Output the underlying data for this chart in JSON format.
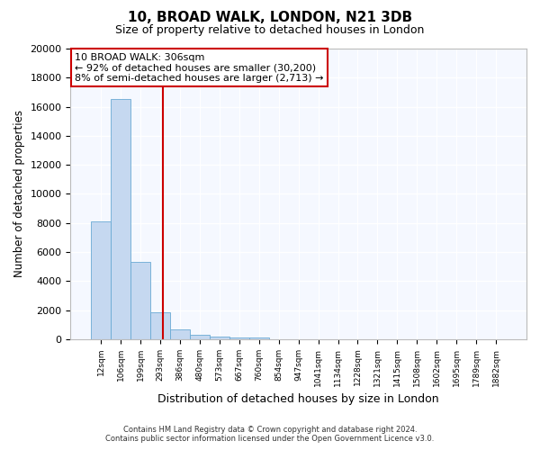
{
  "title": "10, BROAD WALK, LONDON, N21 3DB",
  "subtitle": "Size of property relative to detached houses in London",
  "xlabel": "Distribution of detached houses by size in London",
  "ylabel": "Number of detached properties",
  "categories": [
    "12sqm",
    "106sqm",
    "199sqm",
    "293sqm",
    "386sqm",
    "480sqm",
    "573sqm",
    "667sqm",
    "760sqm",
    "854sqm",
    "947sqm",
    "1041sqm",
    "1134sqm",
    "1228sqm",
    "1321sqm",
    "1415sqm",
    "1508sqm",
    "1602sqm",
    "1695sqm",
    "1789sqm",
    "1882sqm"
  ],
  "values": [
    8100,
    16550,
    5300,
    1850,
    680,
    300,
    150,
    100,
    100,
    0,
    0,
    0,
    0,
    0,
    0,
    0,
    0,
    0,
    0,
    0,
    0
  ],
  "bar_color": "#c5d8f0",
  "bar_edge_color": "#6aaad4",
  "vline_color": "#cc0000",
  "vline_pos": 3.15,
  "annotation_title": "10 BROAD WALK: 306sqm",
  "annotation_line1": "← 92% of detached houses are smaller (30,200)",
  "annotation_line2": "8% of semi-detached houses are larger (2,713) →",
  "annotation_box_color": "#ffffff",
  "annotation_box_edge": "#cc0000",
  "ylim": [
    0,
    20000
  ],
  "yticks": [
    0,
    2000,
    4000,
    6000,
    8000,
    10000,
    12000,
    14000,
    16000,
    18000,
    20000
  ],
  "footer_line1": "Contains HM Land Registry data © Crown copyright and database right 2024.",
  "footer_line2": "Contains public sector information licensed under the Open Government Licence v3.0.",
  "bg_color": "#ffffff",
  "plot_bg_color": "#f5f8ff"
}
